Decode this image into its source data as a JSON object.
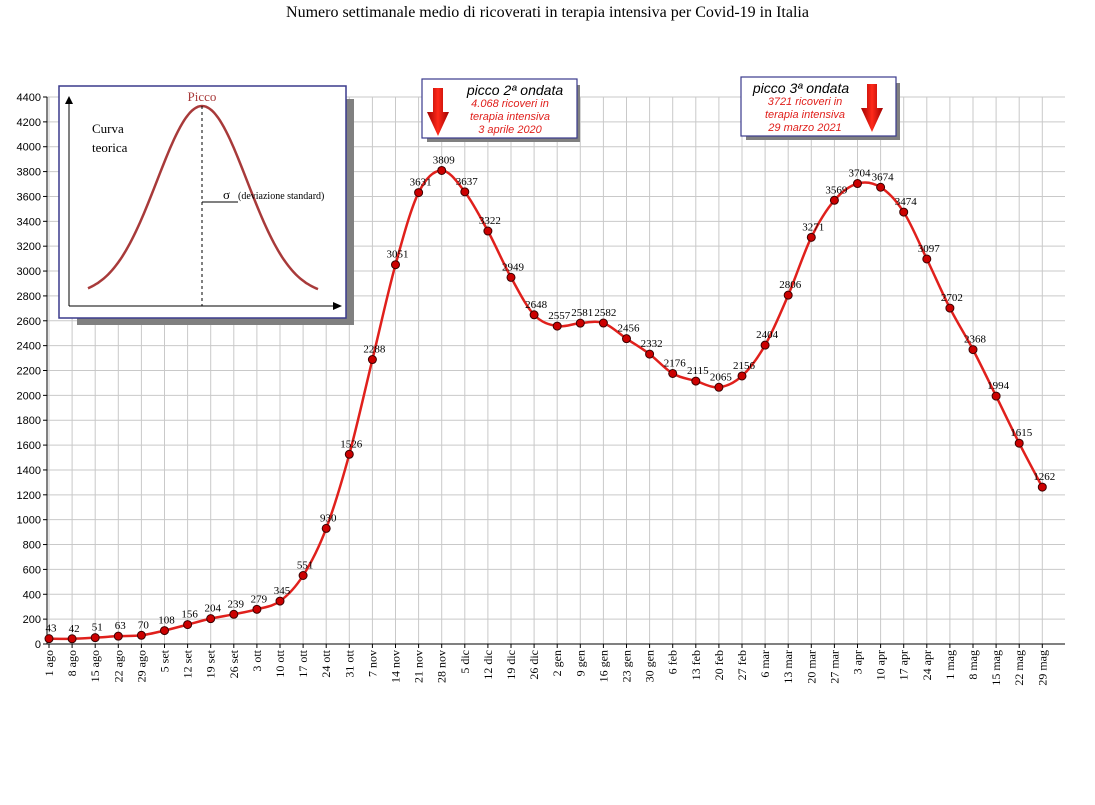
{
  "title": "Numero settimanale medio di ricoverati in terapia intensiva per Covid-19 in Italia",
  "colors": {
    "line": "#e0201c",
    "marker": "#cc0000",
    "grid": "#c9c9c9",
    "callout_border": "#3a3a8c",
    "shadow": "#808080"
  },
  "callouts": [
    {
      "title": "picco 2ª ondata",
      "lines": [
        "4.068 ricoveri in",
        "terapia intensiva",
        "3 aprile 2020"
      ]
    },
    {
      "title": "picco 3ª ondata",
      "lines": [
        "3721 ricoveri in",
        "terapia intensiva",
        "29 marzo 2021"
      ]
    }
  ],
  "inset": {
    "peak_label": "Picco",
    "curve_label_1": "Curva",
    "curve_label_2": "teorica",
    "sigma_symbol": "σ",
    "sigma_text": "(deviazione standard)"
  },
  "chart_data": {
    "type": "line",
    "title": "Numero settimanale medio di ricoverati in terapia intensiva per Covid-19 in Italia",
    "xlabel": "",
    "ylabel": "",
    "ylim": [
      0,
      4400
    ],
    "yticks": [
      0,
      200,
      400,
      600,
      800,
      1000,
      1200,
      1400,
      1600,
      1800,
      2000,
      2200,
      2400,
      2600,
      2800,
      3000,
      3200,
      3400,
      3600,
      3800,
      4000,
      4200,
      4400
    ],
    "grid": true,
    "categories": [
      "1 ago",
      "8 ago",
      "15 ago",
      "22 ago",
      "29 ago",
      "5 set",
      "12 set",
      "19 set",
      "26 set",
      "3 ott",
      "10 ott",
      "17 ott",
      "24 ott",
      "31 ott",
      "7 nov",
      "14 nov",
      "21 nov",
      "28 nov",
      "5 dic",
      "12 dic",
      "19 dic",
      "26 dic",
      "2 gen",
      "9 gen",
      "16 gen",
      "23 gen",
      "30 gen",
      "6 feb",
      "13 feb",
      "20 feb",
      "27 feb",
      "6 mar",
      "13 mar",
      "20 mar",
      "27 mar",
      "3 apr",
      "10 apr",
      "17 apr",
      "24 apr",
      "1 mag",
      "8 mag",
      "15 mag",
      "22 mag",
      "29 mag"
    ],
    "series": [
      {
        "values": [
          43,
          42,
          51,
          63,
          70,
          108,
          156,
          204,
          239,
          279,
          345,
          551,
          930,
          1526,
          2288,
          3051,
          3631,
          3809,
          3637,
          3322,
          2949,
          2648,
          2557,
          2581,
          2582,
          2456,
          2332,
          2176,
          2115,
          2065,
          2156,
          2404,
          2806,
          3271,
          3569,
          3704,
          3674,
          3474,
          3097,
          2702,
          2368,
          1994,
          1615,
          1262
        ]
      }
    ]
  }
}
